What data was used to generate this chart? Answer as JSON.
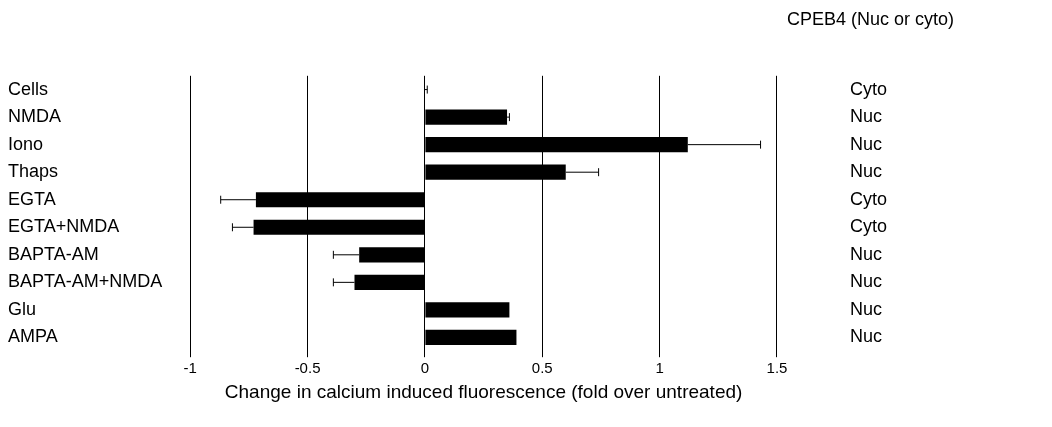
{
  "chart_data": {
    "type": "bar",
    "orientation": "horizontal",
    "xlabel": "Change in calcium induced fluorescence (fold over untreated)",
    "y2label": "CPEB4 (Nuc or cyto)",
    "categories": [
      "Cells",
      "NMDA",
      "Iono",
      "Thaps",
      "EGTA",
      "EGTA+NMDA",
      "BAPTA-AM",
      "BAPTA-AM+NMDA",
      "Glu",
      "AMPA"
    ],
    "y2_categories": [
      "Cyto",
      "Nuc",
      "Nuc",
      "Nuc",
      "Cyto",
      "Cyto",
      "Nuc",
      "Nuc",
      "Nuc",
      "Nuc"
    ],
    "values": [
      0,
      0.35,
      1.12,
      0.6,
      -0.72,
      -0.73,
      -0.28,
      -0.3,
      0.36,
      0.39
    ],
    "errors": [
      0.01,
      0.01,
      0.31,
      0.14,
      0.15,
      0.09,
      0.11,
      0.09,
      null,
      null
    ],
    "color": "#000000",
    "xlim": [
      -1,
      1.5
    ],
    "xticks": [
      -1,
      -0.5,
      0,
      0.5,
      1,
      1.5
    ],
    "grid": "x",
    "legend": false
  }
}
